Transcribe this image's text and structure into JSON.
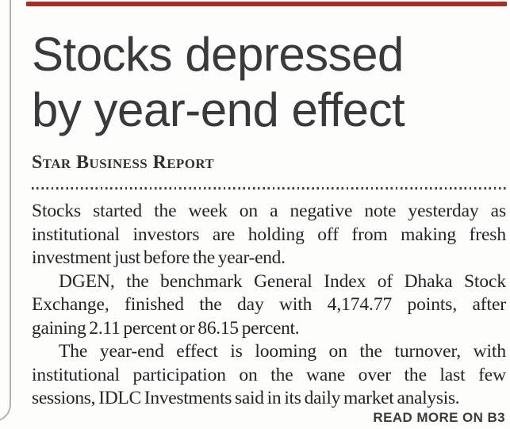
{
  "colors": {
    "top_bar": "#a5302a",
    "page_background": "#fdfdfc",
    "edge_line": "#b4b4b4",
    "headline_text": "#3a3a3c",
    "body_text": "#242424"
  },
  "headline": {
    "line1": "Stocks depressed",
    "line2": "by year-end effect"
  },
  "byline": "Star Business Report",
  "article": {
    "paragraphs": [
      {
        "lines": [
          "Stocks started the week on a negative note yesterday as",
          "institutional investors are holding off from making fresh",
          "investment just before the year-end."
        ]
      },
      {
        "lines": [
          "DGEN, the benchmark General Index of Dhaka Stock",
          "Exchange, finished the day with 4,174.77 points, after",
          "gaining 2.11 percent or 86.15 percent."
        ]
      },
      {
        "lines": [
          "The year-end effect is looming on the turnover, with",
          "institutional participation on the wane over the last few",
          "sessions, IDLC Investments said in its daily market analysis."
        ]
      }
    ]
  },
  "read_more": "READ MORE ON B3"
}
